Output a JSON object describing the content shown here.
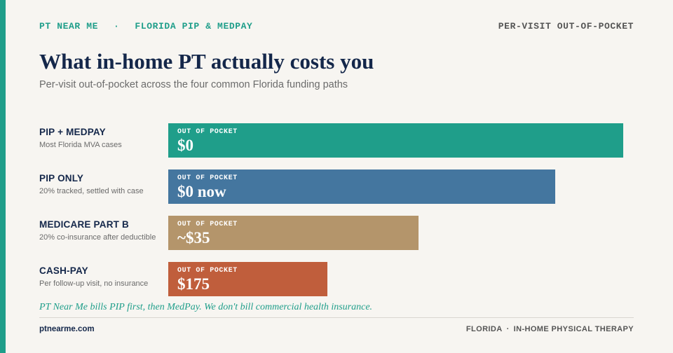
{
  "header": {
    "brand": "PT NEAR ME",
    "separator": "·",
    "region": "FLORIDA PIP & MEDPAY",
    "tagline": "PER-VISIT OUT-OF-POCKET"
  },
  "title": "What in-home PT actually costs you",
  "subtitle": "Per-visit out-of-pocket across the four common Florida funding paths",
  "chart_data": {
    "type": "bar",
    "orientation": "horizontal",
    "value_caption": "OUT OF POCKET",
    "bar_lengths": [
      1.0,
      0.85,
      0.55,
      0.35
    ],
    "categories": [
      "PIP + MEDPAY",
      "PIP ONLY",
      "MEDICARE PART B",
      "CASH-PAY"
    ],
    "descriptions": [
      "Most Florida MVA cases",
      "20% tracked, settled with case",
      "20% co-insurance after deductible",
      "Per follow-up visit, no insurance"
    ],
    "value_labels": [
      "$0",
      "$0 now",
      "~$35",
      "$175"
    ],
    "colors": [
      "#1f9e8a",
      "#44769f",
      "#b4956b",
      "#c05e3c"
    ]
  },
  "note": "PT Near Me bills PIP first, then MedPay. We don't bill commercial health insurance.",
  "footer": {
    "site": "ptnearme.com",
    "state": "FLORIDA",
    "separator": "·",
    "service": "IN-HOME PHYSICAL THERAPY"
  }
}
